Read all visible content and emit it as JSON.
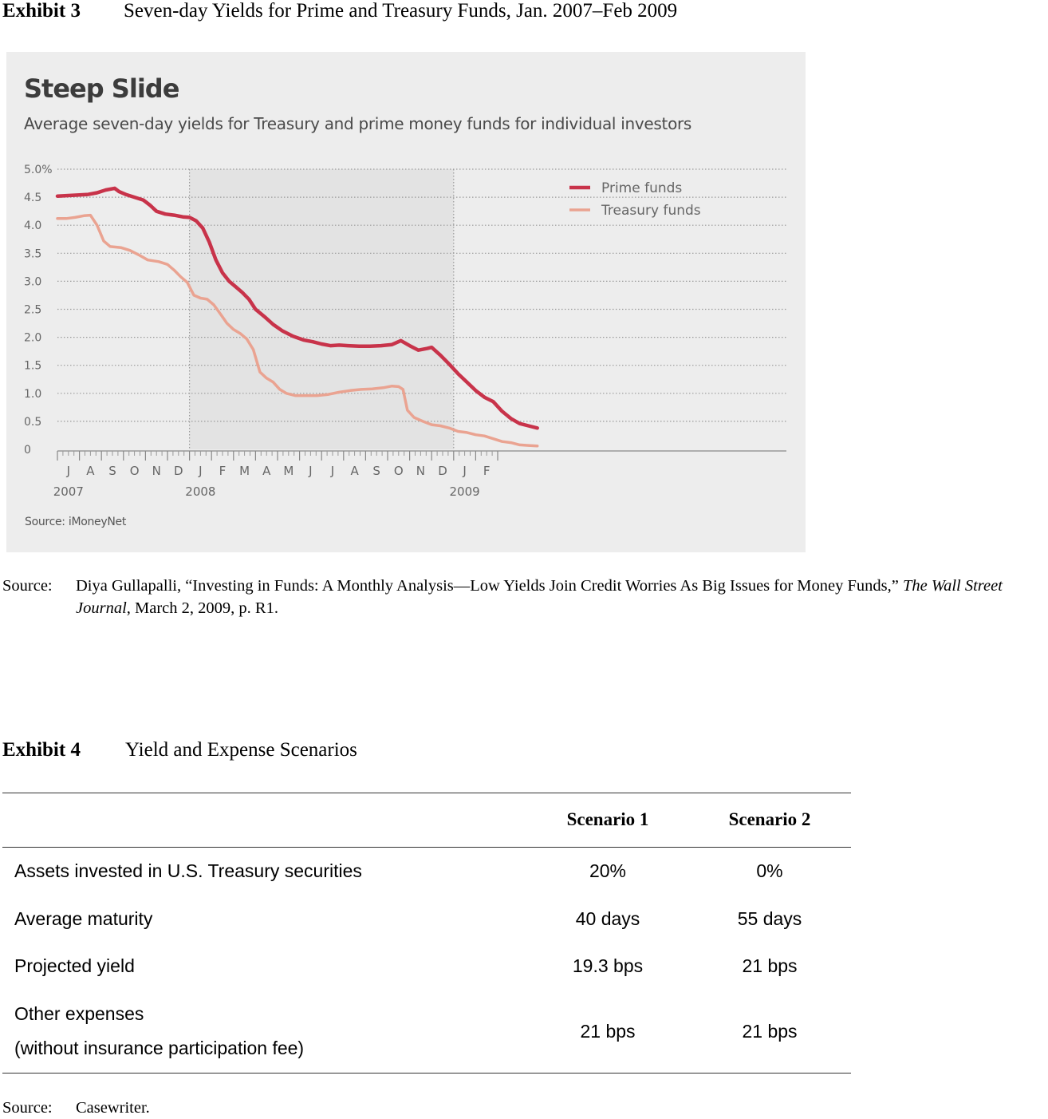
{
  "exhibit3": {
    "number": "Exhibit 3",
    "title": "Seven-day Yields for Prime and Treasury Funds, Jan. 2007–Feb 2009",
    "source_label": "Source:",
    "source_text_before": "Diya Gullapalli, “Investing in Funds: A Monthly Analysis—Low Yields Join Credit Worries As Big Issues for Money Funds,” ",
    "source_publication": "The Wall Street Journal",
    "source_text_after": ", March 2, 2009, p. R1."
  },
  "chart_data": {
    "type": "line",
    "title": "Steep Slide",
    "subtitle": "Average seven-day yields for Treasury and prime money funds for individual investors",
    "source": "Source: iMoneyNet",
    "ylim": [
      0,
      5.0
    ],
    "yticks": [
      "0",
      "0.5",
      "1.0",
      "1.5",
      "2.0",
      "2.5",
      "3.0",
      "3.5",
      "4.0",
      "4.5",
      "5.0%"
    ],
    "month_labels": [
      "J",
      "A",
      "S",
      "O",
      "N",
      "D",
      "J",
      "F",
      "M",
      "A",
      "M",
      "J",
      "J",
      "A",
      "S",
      "O",
      "N",
      "D",
      "J",
      "F"
    ],
    "year_labels": [
      {
        "label": "2007",
        "month_index": 0
      },
      {
        "label": "2008",
        "month_index": 6
      },
      {
        "label": "2009",
        "month_index": 18
      }
    ],
    "x_unit": "months since Jul 2007",
    "grid": true,
    "legend_position": "top-right",
    "series": [
      {
        "name": "Prime funds",
        "color": "#c8334a",
        "points": [
          [
            0.0,
            4.52
          ],
          [
            0.5,
            4.53
          ],
          [
            1.0,
            4.54
          ],
          [
            1.4,
            4.55
          ],
          [
            1.8,
            4.58
          ],
          [
            2.2,
            4.63
          ],
          [
            2.6,
            4.66
          ],
          [
            2.8,
            4.6
          ],
          [
            3.1,
            4.55
          ],
          [
            3.5,
            4.5
          ],
          [
            3.9,
            4.45
          ],
          [
            4.2,
            4.36
          ],
          [
            4.5,
            4.25
          ],
          [
            4.9,
            4.2
          ],
          [
            5.3,
            4.18
          ],
          [
            5.7,
            4.15
          ],
          [
            6.0,
            4.14
          ],
          [
            6.3,
            4.08
          ],
          [
            6.6,
            3.95
          ],
          [
            6.9,
            3.7
          ],
          [
            7.2,
            3.38
          ],
          [
            7.5,
            3.15
          ],
          [
            7.8,
            3.0
          ],
          [
            8.1,
            2.9
          ],
          [
            8.4,
            2.8
          ],
          [
            8.7,
            2.68
          ],
          [
            9.0,
            2.5
          ],
          [
            9.4,
            2.37
          ],
          [
            9.8,
            2.23
          ],
          [
            10.2,
            2.12
          ],
          [
            10.7,
            2.02
          ],
          [
            11.2,
            1.95
          ],
          [
            11.6,
            1.92
          ],
          [
            12.0,
            1.88
          ],
          [
            12.4,
            1.85
          ],
          [
            12.8,
            1.86
          ],
          [
            13.2,
            1.85
          ],
          [
            13.7,
            1.84
          ],
          [
            14.2,
            1.84
          ],
          [
            14.7,
            1.85
          ],
          [
            15.2,
            1.87
          ],
          [
            15.6,
            1.94
          ],
          [
            16.0,
            1.85
          ],
          [
            16.4,
            1.77
          ],
          [
            16.8,
            1.8
          ],
          [
            17.0,
            1.82
          ],
          [
            17.4,
            1.68
          ],
          [
            17.8,
            1.52
          ],
          [
            18.2,
            1.35
          ],
          [
            18.6,
            1.2
          ],
          [
            19.0,
            1.05
          ],
          [
            19.4,
            0.93
          ],
          [
            19.8,
            0.85
          ],
          [
            20.2,
            0.68
          ],
          [
            20.6,
            0.55
          ],
          [
            21.0,
            0.46
          ],
          [
            21.4,
            0.42
          ],
          [
            21.8,
            0.38
          ]
        ]
      },
      {
        "name": "Treasury funds",
        "color": "#eaa391",
        "points": [
          [
            0.0,
            4.12
          ],
          [
            0.4,
            4.12
          ],
          [
            0.8,
            4.14
          ],
          [
            1.2,
            4.17
          ],
          [
            1.5,
            4.18
          ],
          [
            1.8,
            4.0
          ],
          [
            2.1,
            3.72
          ],
          [
            2.4,
            3.62
          ],
          [
            2.9,
            3.6
          ],
          [
            3.3,
            3.55
          ],
          [
            3.7,
            3.47
          ],
          [
            4.1,
            3.38
          ],
          [
            4.6,
            3.35
          ],
          [
            5.0,
            3.3
          ],
          [
            5.3,
            3.2
          ],
          [
            5.6,
            3.08
          ],
          [
            5.9,
            2.98
          ],
          [
            6.2,
            2.75
          ],
          [
            6.5,
            2.7
          ],
          [
            6.8,
            2.68
          ],
          [
            7.1,
            2.58
          ],
          [
            7.4,
            2.42
          ],
          [
            7.7,
            2.25
          ],
          [
            8.0,
            2.14
          ],
          [
            8.3,
            2.07
          ],
          [
            8.6,
            1.97
          ],
          [
            8.9,
            1.78
          ],
          [
            9.2,
            1.38
          ],
          [
            9.5,
            1.27
          ],
          [
            9.8,
            1.2
          ],
          [
            10.1,
            1.07
          ],
          [
            10.4,
            1.0
          ],
          [
            10.8,
            0.96
          ],
          [
            11.3,
            0.96
          ],
          [
            11.8,
            0.96
          ],
          [
            12.3,
            0.98
          ],
          [
            12.8,
            1.02
          ],
          [
            13.3,
            1.05
          ],
          [
            13.8,
            1.07
          ],
          [
            14.3,
            1.08
          ],
          [
            14.8,
            1.1
          ],
          [
            15.2,
            1.13
          ],
          [
            15.5,
            1.12
          ],
          [
            15.7,
            1.07
          ],
          [
            15.9,
            0.7
          ],
          [
            16.2,
            0.57
          ],
          [
            16.6,
            0.5
          ],
          [
            17.0,
            0.44
          ],
          [
            17.4,
            0.42
          ],
          [
            17.8,
            0.38
          ],
          [
            18.2,
            0.32
          ],
          [
            18.6,
            0.3
          ],
          [
            19.0,
            0.26
          ],
          [
            19.4,
            0.24
          ],
          [
            19.8,
            0.19
          ],
          [
            20.2,
            0.14
          ],
          [
            20.6,
            0.12
          ],
          [
            21.0,
            0.08
          ],
          [
            21.4,
            0.07
          ],
          [
            21.8,
            0.06
          ]
        ]
      }
    ]
  },
  "exhibit4": {
    "number": "Exhibit 4",
    "title": "Yield and Expense Scenarios",
    "columns": [
      "Scenario 1",
      "Scenario 2"
    ],
    "rows": [
      {
        "label": "Assets invested in U.S. Treasury securities",
        "s1": "20%",
        "s2": "0%"
      },
      {
        "label": "Average maturity",
        "s1": "40 days",
        "s2": "55 days"
      },
      {
        "label": "Projected yield",
        "s1": "19.3 bps",
        "s2": "21 bps"
      }
    ],
    "last_row": {
      "label_line1": "Other expenses",
      "label_line2": "(without insurance participation fee)",
      "s1": "21 bps",
      "s2": "21 bps"
    },
    "source_label": "Source:",
    "source_text": "Casewriter."
  }
}
